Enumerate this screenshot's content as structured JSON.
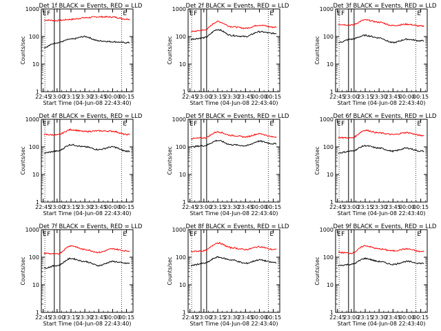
{
  "chart_data": [
    {
      "type": "line",
      "title": "Det 1f BLACK = Events, RED = LLD",
      "xlabel": "Start Time (04-Jun-08 22:43:40)",
      "ylabel": "Counts/sec",
      "yscale": "log",
      "ylim": [
        1,
        1000
      ],
      "xticks": [
        "22:45",
        "23:00",
        "23:15",
        "23:30",
        "23:45",
        "00:00",
        "00:15"
      ],
      "yticks": [
        "1",
        "10",
        "100",
        "1000"
      ],
      "markers": [
        "E",
        "F",
        "E"
      ],
      "series": [
        {
          "color": "#ff0000",
          "x": [
            "22:45",
            "23:00",
            "23:15",
            "23:30",
            "23:45",
            "00:00",
            "00:15"
          ],
          "values": [
            400,
            380,
            420,
            480,
            520,
            510,
            430
          ]
        },
        {
          "color": "#000000",
          "x": [
            "22:45",
            "23:00",
            "23:15",
            "23:30",
            "23:45",
            "00:00",
            "00:15"
          ],
          "values": [
            40,
            60,
            80,
            100,
            70,
            65,
            60
          ]
        }
      ]
    },
    {
      "type": "line",
      "title": "Det 2f BLACK = Events, RED = LLD",
      "xlabel": "Start Time (04-Jun-08 22:43:40)",
      "ylabel": "Counts/sec",
      "yscale": "log",
      "ylim": [
        1,
        1000
      ],
      "xticks": [
        "22:45",
        "23:00",
        "23:15",
        "23:30",
        "23:45",
        "00:00",
        "00:15"
      ],
      "yticks": [
        "1",
        "10",
        "100",
        "1000"
      ],
      "markers": [
        "E",
        "F",
        "E"
      ],
      "series": [
        {
          "color": "#ff0000",
          "x": [
            "22:45",
            "23:00",
            "23:15",
            "23:30",
            "23:45",
            "00:00",
            "00:15"
          ],
          "values": [
            150,
            170,
            350,
            230,
            200,
            260,
            220
          ]
        },
        {
          "color": "#000000",
          "x": [
            "22:45",
            "23:00",
            "23:15",
            "23:30",
            "23:45",
            "00:00",
            "00:15"
          ],
          "values": [
            80,
            90,
            180,
            110,
            100,
            150,
            130
          ]
        }
      ]
    },
    {
      "type": "line",
      "title": "Det 3f BLACK = Events, RED = LLD",
      "xlabel": "Start Time (04-Jun-08 22:43:40)",
      "ylabel": "Counts/sec",
      "yscale": "log",
      "ylim": [
        1,
        1000
      ],
      "xticks": [
        "22:45",
        "23:00",
        "23:15",
        "23:30",
        "23:45",
        "00:00",
        "00:15"
      ],
      "yticks": [
        "1",
        "10",
        "100",
        "1000"
      ],
      "markers": [
        "E",
        "F",
        "E"
      ],
      "series": [
        {
          "color": "#ff0000",
          "x": [
            "22:45",
            "23:00",
            "23:15",
            "23:30",
            "23:45",
            "00:00",
            "00:15"
          ],
          "values": [
            280,
            260,
            400,
            330,
            250,
            280,
            240
          ]
        },
        {
          "color": "#000000",
          "x": [
            "22:45",
            "23:00",
            "23:15",
            "23:30",
            "23:45",
            "00:00",
            "00:15"
          ],
          "values": [
            60,
            80,
            110,
            90,
            60,
            80,
            70
          ]
        }
      ]
    },
    {
      "type": "line",
      "title": "Det 4f BLACK = Events, RED = LLD",
      "xlabel": "Start Time (04-Jun-08 22:43:40)",
      "ylabel": "Counts/sec",
      "yscale": "log",
      "ylim": [
        1,
        1000
      ],
      "xticks": [
        "22:45",
        "23:00",
        "23:15",
        "23:30",
        "23:45",
        "00:00",
        "00:15"
      ],
      "yticks": [
        "1",
        "10",
        "100",
        "1000"
      ],
      "markers": [
        "E",
        "F",
        "E"
      ],
      "series": [
        {
          "color": "#ff0000",
          "x": [
            "22:45",
            "23:00",
            "23:15",
            "23:30",
            "23:45",
            "00:00",
            "00:15"
          ],
          "values": [
            280,
            270,
            420,
            360,
            380,
            370,
            280
          ]
        },
        {
          "color": "#000000",
          "x": [
            "22:45",
            "23:00",
            "23:15",
            "23:30",
            "23:45",
            "00:00",
            "00:15"
          ],
          "values": [
            60,
            70,
            120,
            100,
            80,
            100,
            70
          ]
        }
      ]
    },
    {
      "type": "line",
      "title": "Det 5f BLACK = Events, RED = LLD",
      "xlabel": "Start Time (04-Jun-08 22:43:40)",
      "ylabel": "Counts/sec",
      "yscale": "log",
      "ylim": [
        1,
        1000
      ],
      "xticks": [
        "22:45",
        "23:00",
        "23:15",
        "23:30",
        "23:45",
        "00:00",
        "00:15"
      ],
      "yticks": [
        "1",
        "10",
        "100",
        "1000"
      ],
      "markers": [
        "E",
        "F",
        "E"
      ],
      "series": [
        {
          "color": "#ff0000",
          "x": [
            "22:45",
            "23:00",
            "23:15",
            "23:30",
            "23:45",
            "00:00",
            "00:15"
          ],
          "values": [
            200,
            210,
            350,
            260,
            230,
            300,
            230
          ]
        },
        {
          "color": "#000000",
          "x": [
            "22:45",
            "23:00",
            "23:15",
            "23:30",
            "23:45",
            "00:00",
            "00:15"
          ],
          "values": [
            100,
            110,
            170,
            120,
            110,
            160,
            130
          ]
        }
      ]
    },
    {
      "type": "line",
      "title": "Det 6f BLACK = Events, RED = LLD",
      "xlabel": "Start Time (04-Jun-08 22:43:40)",
      "ylabel": "Counts/sec",
      "yscale": "log",
      "ylim": [
        1,
        1000
      ],
      "xticks": [
        "22:45",
        "23:00",
        "23:15",
        "23:30",
        "23:45",
        "00:00",
        "00:15"
      ],
      "yticks": [
        "1",
        "10",
        "100",
        "1000"
      ],
      "markers": [
        "E",
        "F",
        "E"
      ],
      "series": [
        {
          "color": "#ff0000",
          "x": [
            "22:45",
            "23:00",
            "23:15",
            "23:30",
            "23:45",
            "00:00",
            "00:15"
          ],
          "values": [
            220,
            210,
            400,
            320,
            280,
            330,
            260
          ]
        },
        {
          "color": "#000000",
          "x": [
            "22:45",
            "23:00",
            "23:15",
            "23:30",
            "23:45",
            "00:00",
            "00:15"
          ],
          "values": [
            60,
            70,
            110,
            90,
            70,
            90,
            70
          ]
        }
      ]
    },
    {
      "type": "line",
      "title": "Det 7f BLACK = Events, RED = LLD",
      "xlabel": "Start Time (04-Jun-08 22:43:40)",
      "ylabel": "Counts/sec",
      "yscale": "log",
      "ylim": [
        1,
        1000
      ],
      "xticks": [
        "22:45",
        "23:00",
        "23:15",
        "23:30",
        "23:45",
        "00:00",
        "00:15"
      ],
      "yticks": [
        "1",
        "10",
        "100",
        "1000"
      ],
      "markers": [
        "E",
        "F",
        "E"
      ],
      "series": [
        {
          "color": "#ff0000",
          "x": [
            "22:45",
            "23:00",
            "23:15",
            "23:30",
            "23:45",
            "00:00",
            "00:15"
          ],
          "values": [
            140,
            130,
            260,
            190,
            150,
            200,
            170
          ]
        },
        {
          "color": "#000000",
          "x": [
            "22:45",
            "23:00",
            "23:15",
            "23:30",
            "23:45",
            "00:00",
            "00:15"
          ],
          "values": [
            40,
            50,
            90,
            70,
            50,
            70,
            60
          ]
        }
      ]
    },
    {
      "type": "line",
      "title": "Det 8f BLACK = Events, RED = LLD",
      "xlabel": "Start Time (04-Jun-08 22:43:40)",
      "ylabel": "Counts/sec",
      "yscale": "log",
      "ylim": [
        1,
        1000
      ],
      "xticks": [
        "22:45",
        "23:00",
        "23:15",
        "23:30",
        "23:45",
        "00:00",
        "00:15"
      ],
      "yticks": [
        "1",
        "10",
        "100",
        "1000"
      ],
      "markers": [
        "E",
        "F",
        "E"
      ],
      "series": [
        {
          "color": "#ff0000",
          "x": [
            "22:45",
            "23:00",
            "23:15",
            "23:30",
            "23:45",
            "00:00",
            "00:15"
          ],
          "values": [
            160,
            170,
            330,
            220,
            190,
            240,
            190
          ]
        },
        {
          "color": "#000000",
          "x": [
            "22:45",
            "23:00",
            "23:15",
            "23:30",
            "23:45",
            "00:00",
            "00:15"
          ],
          "values": [
            50,
            60,
            100,
            80,
            60,
            80,
            65
          ]
        }
      ]
    },
    {
      "type": "line",
      "title": "Det 9f BLACK = Events, RED = LLD",
      "xlabel": "Start Time (04-Jun-08 22:43:40)",
      "ylabel": "Counts/sec",
      "yscale": "log",
      "ylim": [
        1,
        1000
      ],
      "xticks": [
        "22:45",
        "23:00",
        "23:15",
        "23:30",
        "23:45",
        "00:00",
        "00:15"
      ],
      "yticks": [
        "1",
        "10",
        "100",
        "1000"
      ],
      "markers": [
        "E",
        "F",
        "E"
      ],
      "series": [
        {
          "color": "#ff0000",
          "x": [
            "22:45",
            "23:00",
            "23:15",
            "23:30",
            "23:45",
            "00:00",
            "00:15"
          ],
          "values": [
            150,
            140,
            260,
            200,
            170,
            200,
            160
          ]
        },
        {
          "color": "#000000",
          "x": [
            "22:45",
            "23:00",
            "23:15",
            "23:30",
            "23:45",
            "00:00",
            "00:15"
          ],
          "values": [
            50,
            55,
            90,
            70,
            55,
            70,
            60
          ]
        }
      ]
    }
  ]
}
